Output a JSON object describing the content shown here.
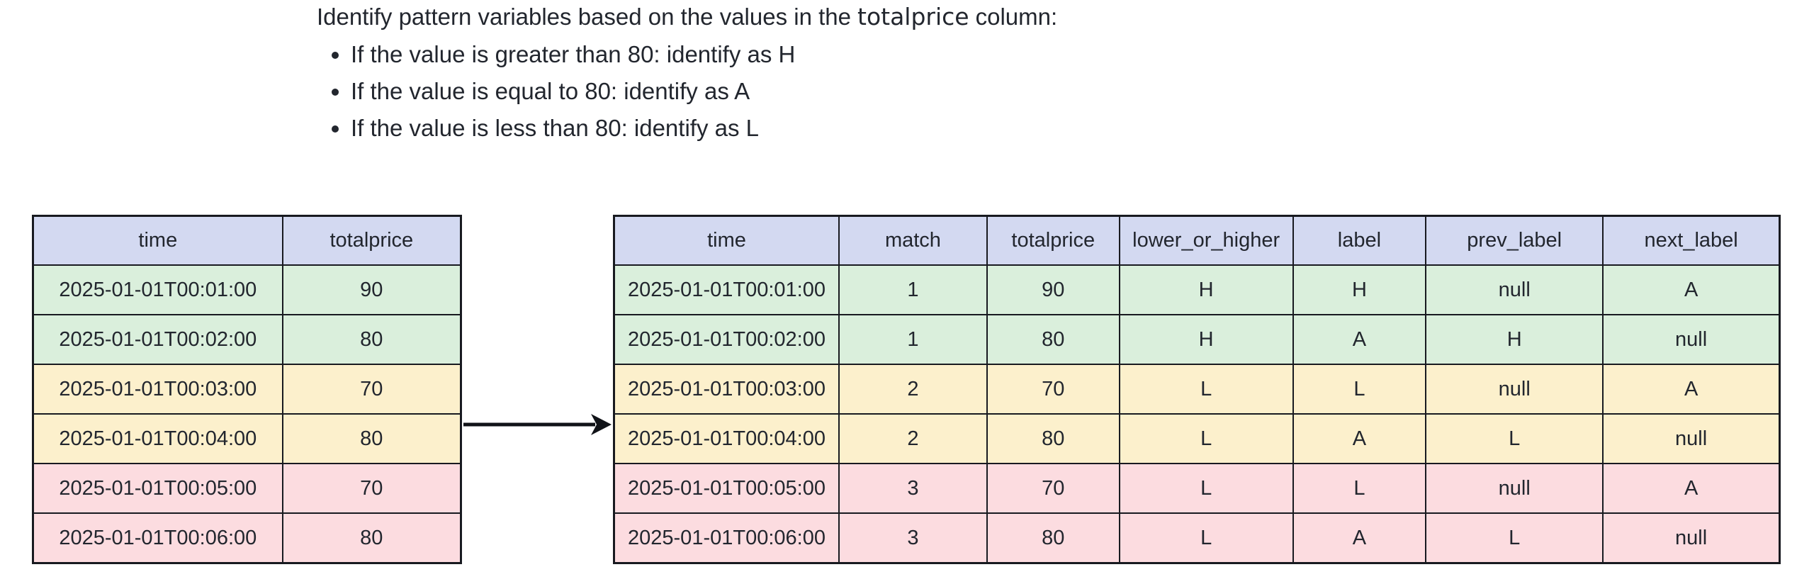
{
  "colors": {
    "header_bg": "#d3d9f1",
    "group1_bg": "#daefdc",
    "group2_bg": "#fcf0cc",
    "group3_bg": "#fcdce0",
    "border": "#181a20",
    "text": "#22262e",
    "arrow": "#111318"
  },
  "instructions": {
    "title_prefix": "Identify pattern variables based on the values in the",
    "title_code": "totalprice",
    "title_suffix": "column:",
    "bullets": [
      "If the value is greater than 80: identify as H",
      "If the value is equal to 80: identify as A",
      "If the value is less than 80: identify as L"
    ]
  },
  "input_table": {
    "headers": [
      "time",
      "totalprice"
    ],
    "rows": [
      {
        "tone": "group1",
        "cells": [
          "2025-01-01T00:01:00",
          "90"
        ]
      },
      {
        "tone": "group1",
        "cells": [
          "2025-01-01T00:02:00",
          "80"
        ]
      },
      {
        "tone": "group2",
        "cells": [
          "2025-01-01T00:03:00",
          "70"
        ]
      },
      {
        "tone": "group2",
        "cells": [
          "2025-01-01T00:04:00",
          "80"
        ]
      },
      {
        "tone": "group3",
        "cells": [
          "2025-01-01T00:05:00",
          "70"
        ]
      },
      {
        "tone": "group3",
        "cells": [
          "2025-01-01T00:06:00",
          "80"
        ]
      }
    ]
  },
  "output_table": {
    "headers": [
      "time",
      "match",
      "totalprice",
      "lower_or_higher",
      "label",
      "prev_label",
      "next_label"
    ],
    "rows": [
      {
        "tone": "group1",
        "cells": [
          "2025-01-01T00:01:00",
          "1",
          "90",
          "H",
          "H",
          "null",
          "A"
        ]
      },
      {
        "tone": "group1",
        "cells": [
          "2025-01-01T00:02:00",
          "1",
          "80",
          "H",
          "A",
          "H",
          "null"
        ]
      },
      {
        "tone": "group2",
        "cells": [
          "2025-01-01T00:03:00",
          "2",
          "70",
          "L",
          "L",
          "null",
          "A"
        ]
      },
      {
        "tone": "group2",
        "cells": [
          "2025-01-01T00:04:00",
          "2",
          "80",
          "L",
          "A",
          "L",
          "null"
        ]
      },
      {
        "tone": "group3",
        "cells": [
          "2025-01-01T00:05:00",
          "3",
          "70",
          "L",
          "L",
          "null",
          "A"
        ]
      },
      {
        "tone": "group3",
        "cells": [
          "2025-01-01T00:06:00",
          "3",
          "80",
          "L",
          "A",
          "L",
          "null"
        ]
      }
    ]
  }
}
